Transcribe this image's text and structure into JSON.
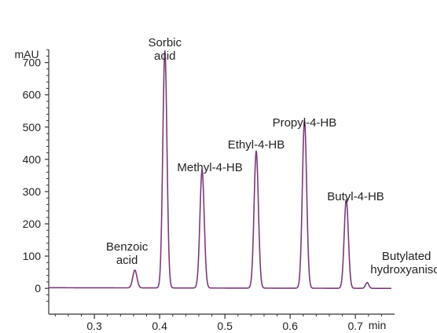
{
  "chart_data": {
    "type": "line",
    "xlabel": "min",
    "ylabel": "mAU",
    "xlim": [
      0.23,
      0.76
    ],
    "ylim": [
      -80,
      760
    ],
    "x_ticks": [
      0.3,
      0.4,
      0.5,
      0.6,
      0.7
    ],
    "x_tick_labels": [
      "0.3",
      "0.4",
      "0.5",
      "0.6",
      "0.7"
    ],
    "y_ticks": [
      0,
      100,
      200,
      300,
      400,
      500,
      600,
      700
    ],
    "y_tick_labels": [
      "0",
      "100",
      "200",
      "300",
      "400",
      "500",
      "600",
      "700"
    ],
    "baseline": 2,
    "grid": false,
    "line_color": "#7a3b78",
    "peaks": [
      {
        "name_lines": [
          "Benzoic",
          "acid"
        ],
        "rt": 0.362,
        "height": 55,
        "width": 0.0032
      },
      {
        "name_lines": [
          "Sorbic",
          "acid"
        ],
        "rt": 0.408,
        "height": 735,
        "width": 0.0032
      },
      {
        "name_lines": [
          "Methyl-4-HB"
        ],
        "rt": 0.465,
        "height": 365,
        "width": 0.0033
      },
      {
        "name_lines": [
          "Ethyl-4-HB"
        ],
        "rt": 0.548,
        "height": 425,
        "width": 0.0033
      },
      {
        "name_lines": [
          "Propyl-4-HB"
        ],
        "rt": 0.622,
        "height": 520,
        "width": 0.0033
      },
      {
        "name_lines": [
          "Butyl-4-HB"
        ],
        "rt": 0.686,
        "height": 275,
        "width": 0.0032
      },
      {
        "name_lines": [
          "Butylated",
          "hydroxyanisol"
        ],
        "rt": 0.718,
        "height": 18,
        "width": 0.0025
      }
    ]
  }
}
